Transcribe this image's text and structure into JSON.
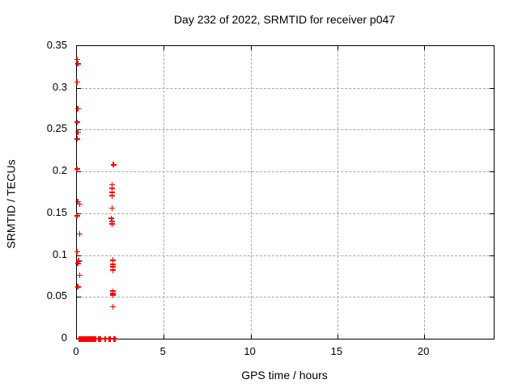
{
  "title": "Day 232 of 2022, SRMTID for receiver p047",
  "chart_data": {
    "type": "scatter",
    "title": "Day 232 of 2022, SRMTID for receiver p047",
    "xlabel": "GPS time / hours",
    "ylabel": "SRMTID / TECUs",
    "xlim": [
      0,
      24
    ],
    "ylim": [
      0,
      0.35
    ],
    "xticks": [
      0,
      5,
      10,
      15,
      20
    ],
    "xtick_labels": [
      "0",
      "5",
      "10",
      "15",
      "20"
    ],
    "yticks": [
      0,
      0.05,
      0.1,
      0.15,
      0.2,
      0.25,
      0.3,
      0.35
    ],
    "ytick_labels": [
      "0",
      "0.05",
      "0.1",
      "0.15",
      "0.2",
      "0.25",
      "0.3",
      "0.35"
    ],
    "grid": true,
    "legend_position": "none",
    "marker_shape": "plus",
    "marker_color": "#ff0000",
    "series": [
      {
        "name": "SRMTID",
        "points": [
          [
            0.0,
            0.334
          ],
          [
            0.06,
            0.329
          ],
          [
            0.0,
            0.307
          ],
          [
            0.05,
            0.275
          ],
          [
            0.02,
            0.259
          ],
          [
            0.05,
            0.247
          ],
          [
            0.02,
            0.239
          ],
          [
            0.0,
            0.203
          ],
          [
            0.06,
            0.164
          ],
          [
            0.16,
            0.161
          ],
          [
            0.0,
            0.147
          ],
          [
            0.16,
            0.125
          ],
          [
            0.0,
            0.104
          ],
          [
            0.1,
            0.093
          ],
          [
            0.06,
            0.09
          ],
          [
            0.16,
            0.076
          ],
          [
            0.06,
            0.062
          ],
          [
            2.1,
            0.208
          ],
          [
            2.02,
            0.184
          ],
          [
            2.02,
            0.18
          ],
          [
            2.02,
            0.175
          ],
          [
            2.02,
            0.171
          ],
          [
            2.02,
            0.156
          ],
          [
            1.98,
            0.144
          ],
          [
            2.02,
            0.14
          ],
          [
            2.02,
            0.137
          ],
          [
            2.07,
            0.094
          ],
          [
            2.07,
            0.089
          ],
          [
            2.07,
            0.086
          ],
          [
            2.07,
            0.082
          ],
          [
            2.07,
            0.057
          ],
          [
            2.07,
            0.054
          ],
          [
            2.07,
            0.052
          ],
          [
            2.07,
            0.038
          ],
          [
            0.15,
            0
          ],
          [
            0.2,
            0
          ],
          [
            0.25,
            0
          ],
          [
            0.3,
            0
          ],
          [
            0.35,
            0
          ],
          [
            0.4,
            0
          ],
          [
            0.45,
            0
          ],
          [
            0.5,
            0
          ],
          [
            0.55,
            0
          ],
          [
            0.6,
            0
          ],
          [
            0.65,
            0
          ],
          [
            0.7,
            0
          ],
          [
            0.75,
            0
          ],
          [
            0.8,
            0
          ],
          [
            0.85,
            0
          ],
          [
            0.9,
            0
          ],
          [
            0.95,
            0
          ],
          [
            1.0,
            0
          ],
          [
            1.05,
            0
          ],
          [
            1.1,
            0
          ],
          [
            1.25,
            0
          ],
          [
            1.3,
            0
          ],
          [
            1.35,
            0
          ],
          [
            1.62,
            0
          ],
          [
            1.85,
            0
          ],
          [
            1.92,
            0
          ],
          [
            2.12,
            0
          ],
          [
            2.18,
            0
          ]
        ]
      }
    ]
  }
}
